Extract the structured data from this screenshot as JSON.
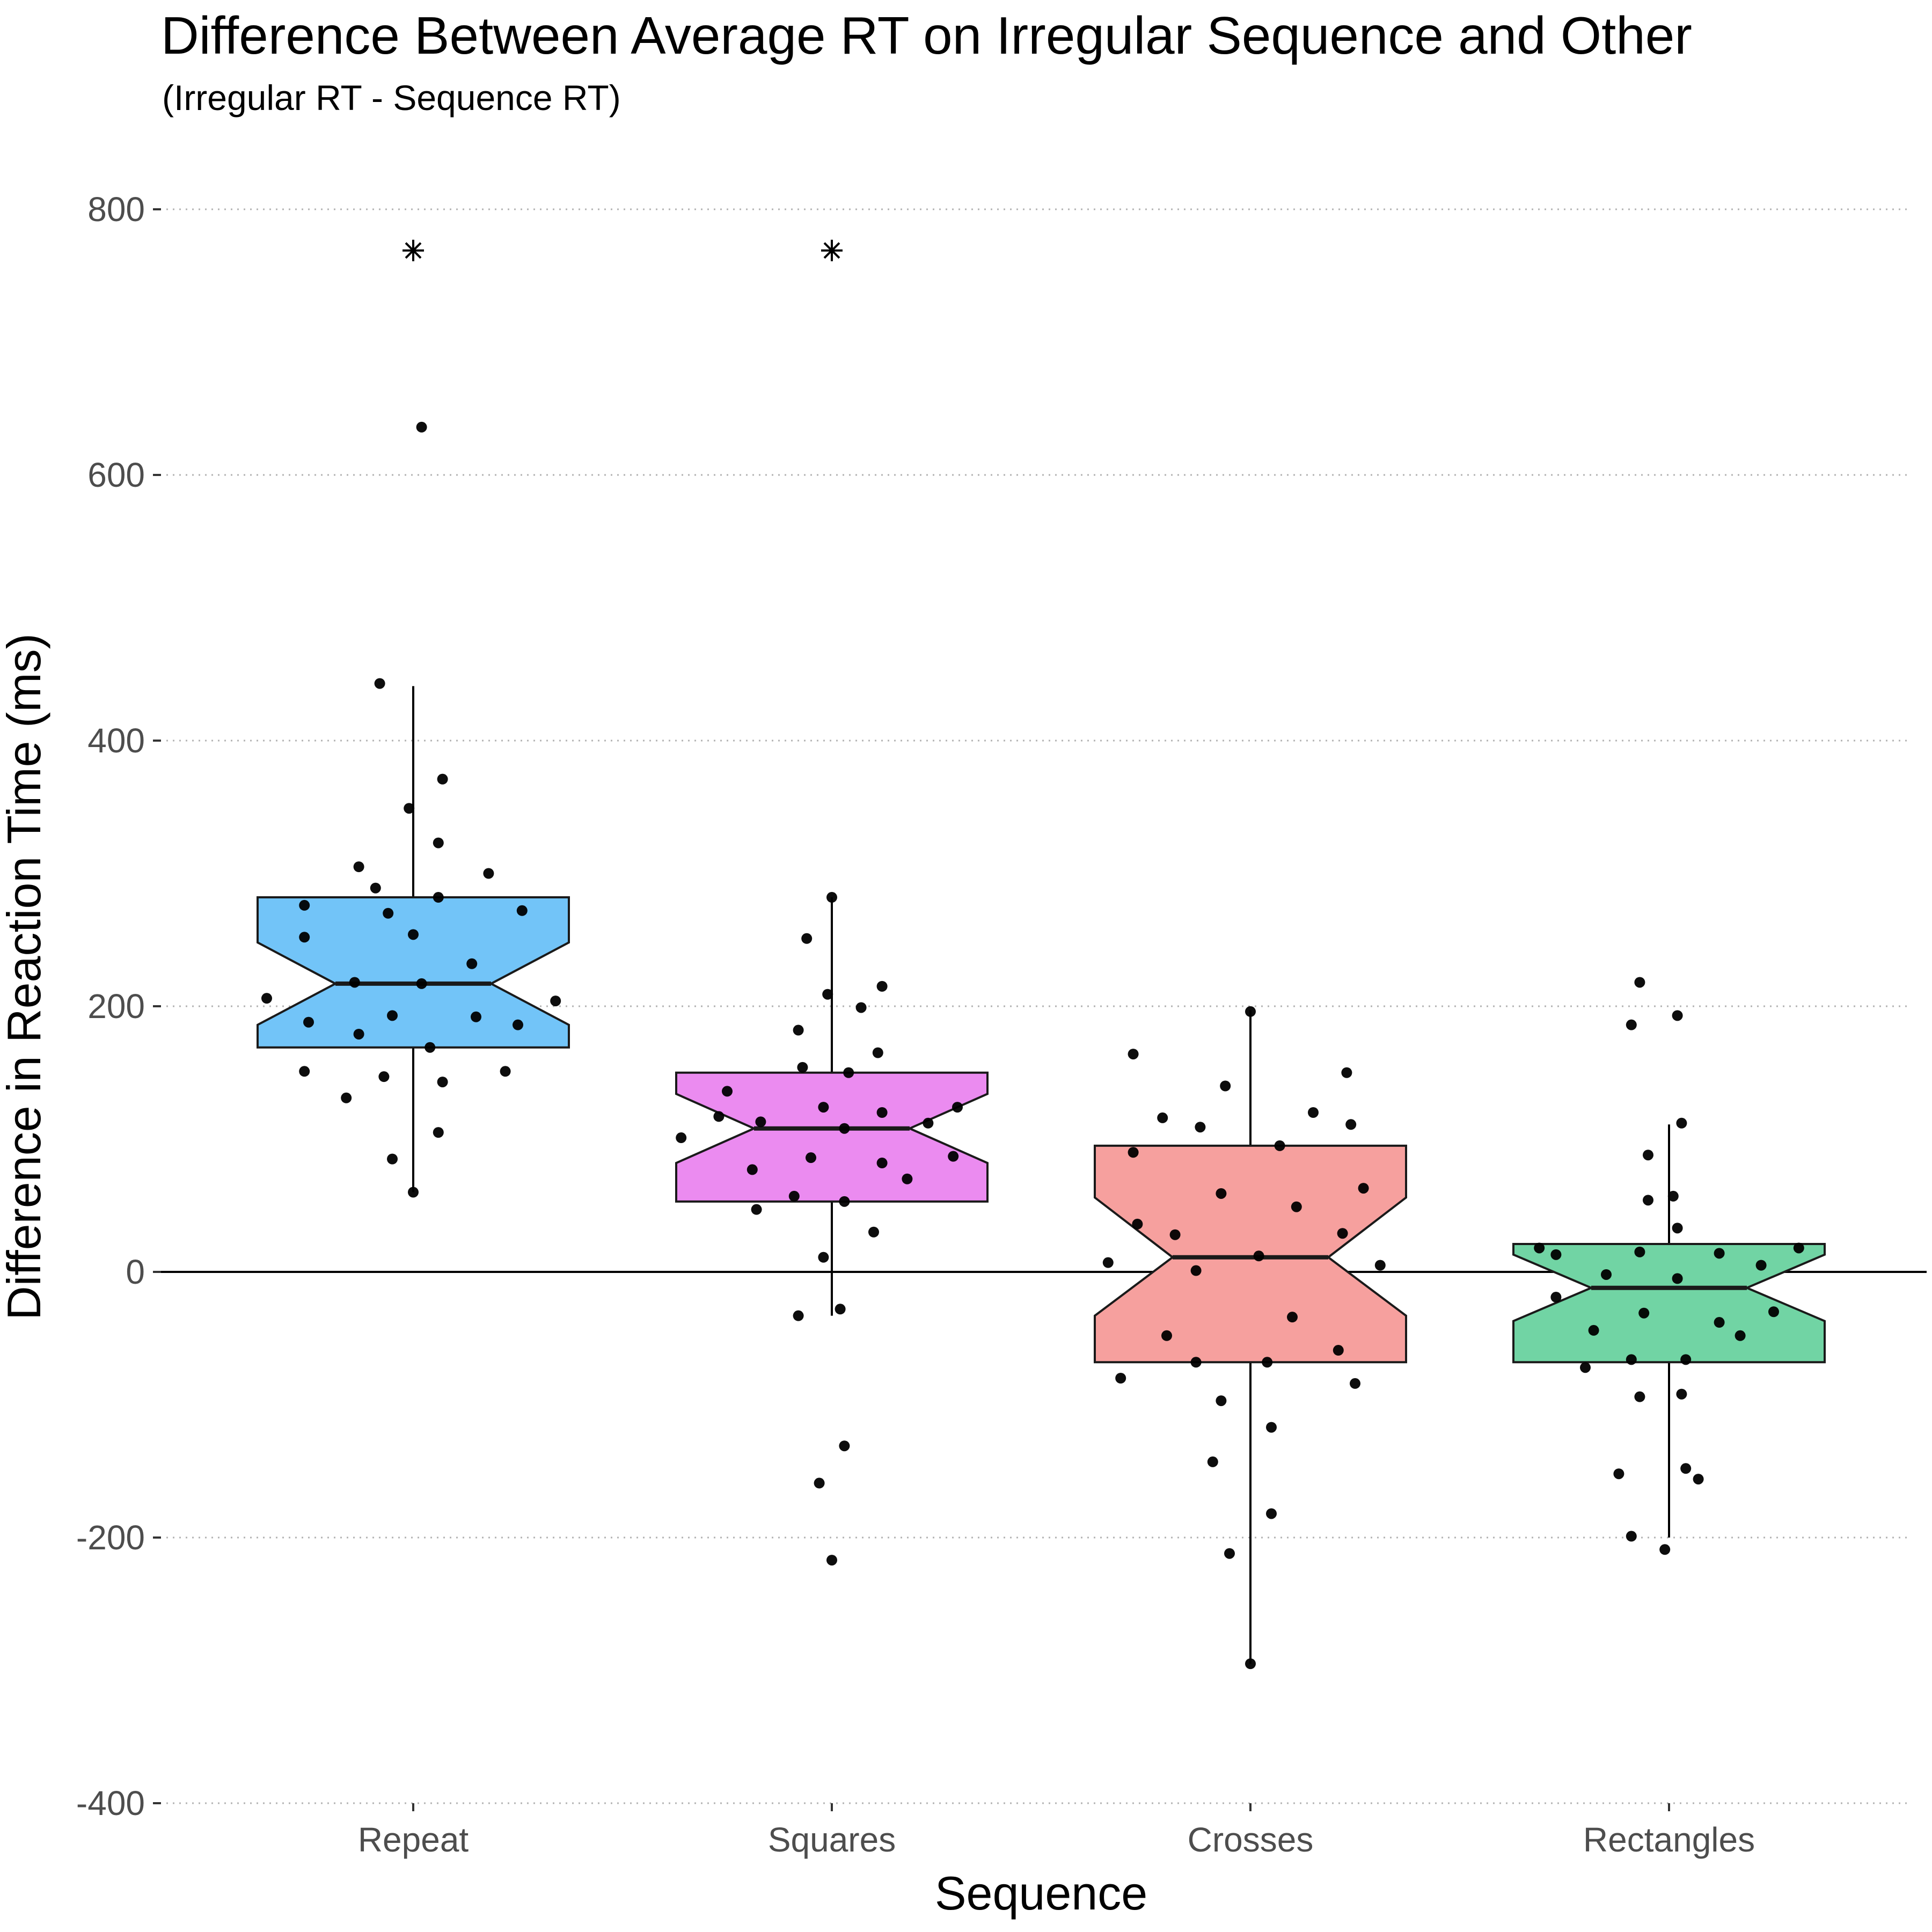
{
  "chart_data": {
    "type": "boxplot",
    "title": "Difference Between Average RT on Irregular Sequence and Other",
    "subtitle": "(Irregular RT - Sequence RT)",
    "xlabel": "Sequence",
    "ylabel": "Difference in Reaction Time (ms)",
    "ylim": [
      -400,
      800
    ],
    "yticks": [
      800,
      600,
      400,
      200,
      0,
      -200,
      -400
    ],
    "reference_line": 0,
    "grid": "horizontal dotted",
    "categories": [
      "Repeat",
      "Squares",
      "Crosses",
      "Rectangles"
    ],
    "colors": [
      "#72C4F8",
      "#EB8BF0",
      "#F6A09E",
      "#71D4A4"
    ],
    "boxes": [
      {
        "name": "Repeat",
        "q1": 169,
        "median": 217,
        "q3": 282,
        "notch_low": 186,
        "notch_high": 248,
        "whisker_low": 60,
        "whisker_high": 441,
        "mean_marker": 769
      },
      {
        "name": "Squares",
        "q1": 53,
        "median": 108,
        "q3": 150,
        "notch_low": 82,
        "notch_high": 134,
        "whisker_low": -33,
        "whisker_high": 282,
        "mean_marker": 769
      },
      {
        "name": "Crosses",
        "q1": -68,
        "median": 11,
        "q3": 95,
        "notch_low": -33,
        "notch_high": 56,
        "whisker_low": -295,
        "whisker_high": 197
      },
      {
        "name": "Rectangles",
        "q1": -68,
        "median": -12,
        "q3": 21,
        "notch_low": -37,
        "notch_high": 13,
        "whisker_low": -200,
        "whisker_high": 111
      }
    ],
    "points": [
      [
        [
          0.02,
          636
        ],
        [
          -0.08,
          443
        ],
        [
          0.07,
          371
        ],
        [
          -0.01,
          349
        ],
        [
          0.06,
          323
        ],
        [
          -0.13,
          305
        ],
        [
          0.18,
          300
        ],
        [
          -0.09,
          289
        ],
        [
          0.06,
          282
        ],
        [
          -0.26,
          276
        ],
        [
          0.26,
          272
        ],
        [
          -0.06,
          270
        ],
        [
          0.0,
          254
        ],
        [
          -0.26,
          252
        ],
        [
          0.14,
          232
        ],
        [
          -0.14,
          218
        ],
        [
          0.02,
          217
        ],
        [
          -0.35,
          206
        ],
        [
          0.34,
          204
        ],
        [
          -0.05,
          193
        ],
        [
          0.15,
          192
        ],
        [
          -0.25,
          188
        ],
        [
          0.25,
          186
        ],
        [
          -0.13,
          179
        ],
        [
          0.04,
          169
        ],
        [
          -0.26,
          151
        ],
        [
          0.22,
          151
        ],
        [
          -0.07,
          147
        ],
        [
          0.07,
          143
        ],
        [
          -0.16,
          131
        ],
        [
          0.06,
          105
        ],
        [
          -0.05,
          85
        ],
        [
          0.0,
          60
        ]
      ],
      [
        [
          0.0,
          282
        ],
        [
          -0.06,
          251
        ],
        [
          0.12,
          215
        ],
        [
          -0.01,
          209
        ],
        [
          0.07,
          199
        ],
        [
          -0.08,
          182
        ],
        [
          0.11,
          165
        ],
        [
          -0.07,
          154
        ],
        [
          0.04,
          150
        ],
        [
          -0.25,
          136
        ],
        [
          -0.02,
          124
        ],
        [
          0.3,
          124
        ],
        [
          0.12,
          120
        ],
        [
          -0.27,
          117
        ],
        [
          -0.17,
          113
        ],
        [
          0.23,
          112
        ],
        [
          0.03,
          108
        ],
        [
          -0.36,
          101
        ],
        [
          0.29,
          87
        ],
        [
          -0.05,
          86
        ],
        [
          0.12,
          82
        ],
        [
          -0.19,
          77
        ],
        [
          0.18,
          70
        ],
        [
          -0.09,
          57
        ],
        [
          0.03,
          53
        ],
        [
          -0.18,
          47
        ],
        [
          0.1,
          30
        ],
        [
          -0.02,
          11
        ],
        [
          -0.08,
          -33
        ],
        [
          0.02,
          -28
        ],
        [
          0.03,
          -131
        ],
        [
          -0.03,
          -159
        ],
        [
          0.0,
          -217
        ]
      ],
      [
        [
          0.0,
          196
        ],
        [
          -0.28,
          164
        ],
        [
          0.23,
          150
        ],
        [
          -0.06,
          140
        ],
        [
          0.15,
          120
        ],
        [
          -0.21,
          116
        ],
        [
          0.24,
          111
        ],
        [
          -0.12,
          109
        ],
        [
          0.07,
          95
        ],
        [
          -0.28,
          90
        ],
        [
          0.27,
          63
        ],
        [
          -0.07,
          59
        ],
        [
          0.11,
          49
        ],
        [
          -0.27,
          36
        ],
        [
          -0.18,
          28
        ],
        [
          0.22,
          29
        ],
        [
          0.02,
          12
        ],
        [
          -0.34,
          7
        ],
        [
          0.31,
          5
        ],
        [
          -0.13,
          1
        ],
        [
          0.1,
          -34
        ],
        [
          -0.2,
          -48
        ],
        [
          0.21,
          -59
        ],
        [
          -0.13,
          -68
        ],
        [
          0.04,
          -68
        ],
        [
          -0.31,
          -80
        ],
        [
          0.25,
          -84
        ],
        [
          -0.07,
          -97
        ],
        [
          0.05,
          -117
        ],
        [
          -0.09,
          -143
        ],
        [
          0.05,
          -182
        ],
        [
          -0.05,
          -212
        ],
        [
          0.0,
          -295
        ]
      ],
      [
        [
          -0.07,
          218
        ],
        [
          -0.09,
          186
        ],
        [
          0.02,
          193
        ],
        [
          0.03,
          112
        ],
        [
          -0.05,
          88
        ],
        [
          0.01,
          57
        ],
        [
          -0.05,
          54
        ],
        [
          0.02,
          33
        ],
        [
          -0.31,
          18
        ],
        [
          0.31,
          18
        ],
        [
          -0.27,
          13
        ],
        [
          -0.07,
          15
        ],
        [
          0.12,
          14
        ],
        [
          0.22,
          5
        ],
        [
          -0.15,
          -2
        ],
        [
          0.02,
          -5
        ],
        [
          -0.27,
          -19
        ],
        [
          0.25,
          -30
        ],
        [
          -0.06,
          -31
        ],
        [
          -0.18,
          -44
        ],
        [
          0.12,
          -38
        ],
        [
          0.17,
          -48
        ],
        [
          -0.09,
          -66
        ],
        [
          0.04,
          -66
        ],
        [
          -0.2,
          -72
        ],
        [
          -0.07,
          -94
        ],
        [
          0.03,
          -92
        ],
        [
          -0.12,
          -152
        ],
        [
          0.04,
          -148
        ],
        [
          0.07,
          -156
        ],
        [
          -0.09,
          -199
        ],
        [
          -0.01,
          -209
        ]
      ]
    ]
  }
}
